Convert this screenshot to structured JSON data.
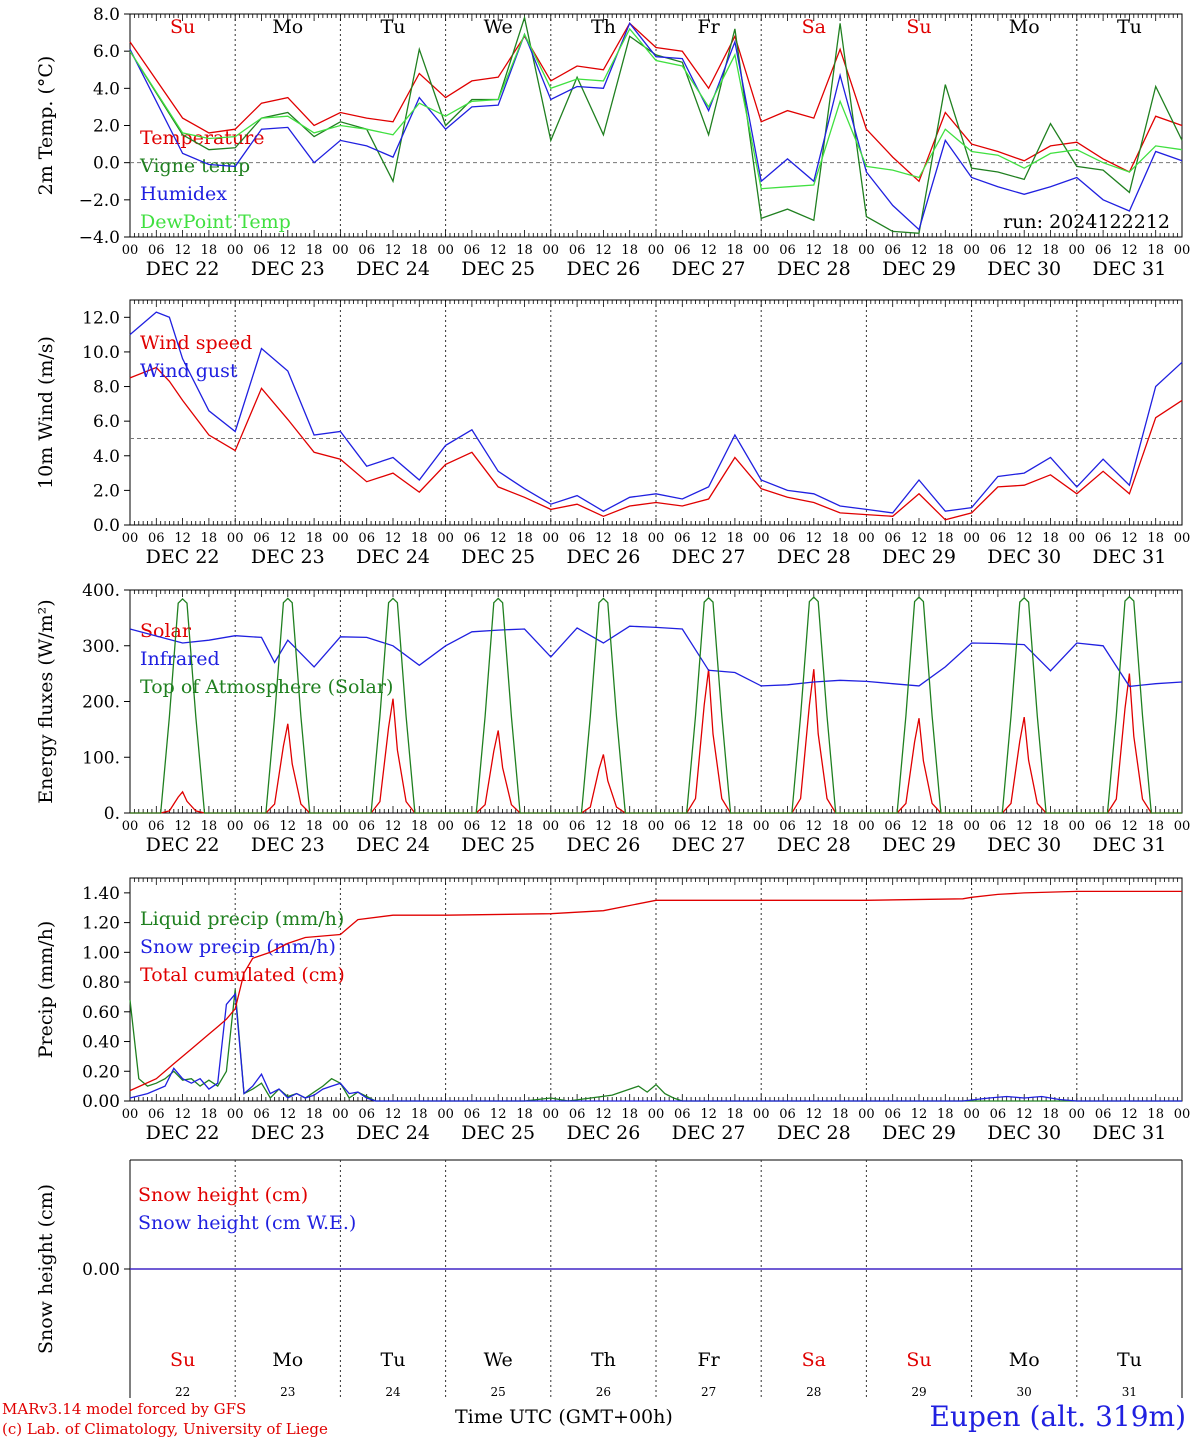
{
  "meta": {
    "run_label": "run: 2024122212",
    "station": "Eupen (alt. 319m)",
    "credit_line1": "MARv3.14 model forced by GFS",
    "credit_line2": "(c) Lab. of Climatology, University of Liege",
    "x_title": "Time UTC (GMT+00h)"
  },
  "days": {
    "weekdays": [
      "Su",
      "Mo",
      "Tu",
      "We",
      "Th",
      "Fr",
      "Sa",
      "Su",
      "Mo",
      "Tu"
    ],
    "weekend_flags": [
      true,
      false,
      false,
      false,
      false,
      false,
      true,
      true,
      false,
      false
    ],
    "date_labels": [
      "DEC 22",
      "DEC 23",
      "DEC 24",
      "DEC 25",
      "DEC 26",
      "DEC 27",
      "DEC 28",
      "DEC 29",
      "DEC 30",
      "DEC 31"
    ],
    "day_numbers": [
      "22",
      "23",
      "24",
      "25",
      "26",
      "27",
      "28",
      "29",
      "30",
      "31"
    ],
    "hour_ticks": [
      "00",
      "06",
      "12",
      "18"
    ],
    "end_tick": "00",
    "weekend_color": "#e00000"
  },
  "chart_data": [
    {
      "type": "line",
      "ylabel": "2m Temp. (°C)",
      "ylim": [
        -4,
        8
      ],
      "yticks": [
        "8.0",
        "6.0",
        "4.0",
        "2.0",
        "0.0",
        "−2.0",
        "−4.0"
      ],
      "ref_line": 0,
      "x_unit": "hours since Dec 22 00 UTC",
      "series": [
        {
          "name": "Temperature",
          "color": "#e00000",
          "x": [
            0,
            12,
            18,
            24,
            30,
            36,
            42,
            48,
            54,
            60,
            66,
            72,
            78,
            84,
            90,
            96,
            102,
            108,
            114,
            120,
            126,
            132,
            138,
            144,
            150,
            156,
            162,
            168,
            174,
            180,
            186,
            192,
            198,
            204,
            210,
            216,
            222,
            228,
            234,
            240
          ],
          "values": [
            6.5,
            2.4,
            1.6,
            1.8,
            3.2,
            3.5,
            2.0,
            2.7,
            2.4,
            2.2,
            4.8,
            3.5,
            4.4,
            4.6,
            6.8,
            4.4,
            5.2,
            5.0,
            7.5,
            6.2,
            6.0,
            4.0,
            6.8,
            2.2,
            2.8,
            2.4,
            6.1,
            1.8,
            0.3,
            -1.0,
            2.7,
            1.0,
            0.6,
            0.1,
            0.9,
            1.1,
            0.2,
            -0.5,
            2.5,
            2.0
          ]
        },
        {
          "name": "Vigne temp",
          "color": "#208020",
          "x": [
            0,
            12,
            18,
            24,
            30,
            36,
            42,
            48,
            54,
            60,
            66,
            72,
            78,
            84,
            90,
            96,
            102,
            108,
            114,
            120,
            126,
            132,
            138,
            144,
            150,
            156,
            162,
            168,
            174,
            180,
            186,
            192,
            198,
            204,
            210,
            216,
            222,
            228,
            234,
            240
          ],
          "values": [
            6.0,
            1.5,
            0.7,
            0.8,
            2.4,
            2.7,
            1.4,
            2.2,
            1.8,
            -1.0,
            6.1,
            2.0,
            3.4,
            3.4,
            7.8,
            1.2,
            4.6,
            1.5,
            6.8,
            5.8,
            5.4,
            1.5,
            7.2,
            -3.0,
            -2.5,
            -3.1,
            7.5,
            -2.9,
            -3.7,
            -3.8,
            4.2,
            -0.3,
            -0.5,
            -0.9,
            2.1,
            -0.2,
            -0.4,
            -1.6,
            4.1,
            1.2
          ]
        },
        {
          "name": "Humidex",
          "color": "#2020e0",
          "x": [
            0,
            12,
            18,
            24,
            30,
            36,
            42,
            48,
            54,
            60,
            66,
            72,
            78,
            84,
            90,
            96,
            102,
            108,
            114,
            120,
            126,
            132,
            138,
            144,
            150,
            156,
            162,
            168,
            174,
            180,
            186,
            192,
            198,
            204,
            210,
            216,
            222,
            228,
            234,
            240
          ],
          "values": [
            6.1,
            0.5,
            -0.1,
            -0.2,
            1.8,
            1.9,
            0.0,
            1.2,
            0.9,
            0.3,
            3.5,
            1.8,
            3.0,
            3.1,
            6.9,
            3.4,
            4.1,
            4.0,
            7.5,
            5.7,
            5.6,
            2.8,
            6.5,
            -1.0,
            0.2,
            -1.0,
            4.7,
            -0.5,
            -2.3,
            -3.6,
            1.2,
            -0.8,
            -1.3,
            -1.7,
            -1.3,
            -0.8,
            -2.0,
            -2.6,
            0.6,
            0.1
          ]
        },
        {
          "name": "DewPoint Temp",
          "color": "#40e040",
          "x": [
            0,
            12,
            18,
            24,
            30,
            36,
            42,
            48,
            54,
            60,
            66,
            72,
            78,
            84,
            90,
            96,
            102,
            108,
            114,
            120,
            126,
            132,
            138,
            144,
            150,
            156,
            162,
            168,
            174,
            180,
            186,
            192,
            198,
            204,
            210,
            216,
            222,
            228,
            234,
            240
          ],
          "values": [
            6.0,
            1.6,
            1.3,
            1.4,
            2.4,
            2.5,
            1.6,
            2.0,
            1.8,
            1.5,
            3.2,
            2.5,
            3.3,
            3.4,
            6.9,
            4.0,
            4.5,
            4.4,
            7.2,
            5.5,
            5.2,
            3.0,
            5.8,
            -1.4,
            -1.3,
            -1.2,
            3.3,
            -0.2,
            -0.4,
            -0.8,
            1.8,
            0.6,
            0.4,
            -0.3,
            0.5,
            0.7,
            0.0,
            -0.5,
            0.9,
            0.7
          ]
        }
      ]
    },
    {
      "type": "line",
      "ylabel": "10m Wind (m/s)",
      "ylim": [
        0,
        13
      ],
      "yticks": [
        "12.0",
        "10.0",
        "8.0",
        "6.0",
        "4.0",
        "2.0",
        "0.0"
      ],
      "ref_line": 5,
      "x_unit": "hours since Dec 22 00 UTC",
      "series": [
        {
          "name": "Wind speed",
          "color": "#e00000",
          "x": [
            0,
            6,
            9,
            12,
            18,
            24,
            30,
            36,
            42,
            48,
            54,
            60,
            66,
            72,
            78,
            84,
            90,
            96,
            102,
            108,
            114,
            120,
            126,
            132,
            138,
            144,
            150,
            156,
            162,
            168,
            174,
            180,
            186,
            192,
            198,
            204,
            210,
            216,
            222,
            228,
            234,
            240
          ],
          "values": [
            8.5,
            9.1,
            8.3,
            7.2,
            5.2,
            4.3,
            7.9,
            6.1,
            4.2,
            3.8,
            2.5,
            3.0,
            1.9,
            3.5,
            4.2,
            2.2,
            1.6,
            0.9,
            1.2,
            0.5,
            1.1,
            1.3,
            1.1,
            1.5,
            3.9,
            2.1,
            1.6,
            1.3,
            0.7,
            0.6,
            0.5,
            1.8,
            0.3,
            0.7,
            2.2,
            2.3,
            2.9,
            1.8,
            3.1,
            1.8,
            6.2,
            7.2
          ]
        },
        {
          "name": "Wind gust",
          "color": "#2020e0",
          "x": [
            0,
            6,
            9,
            12,
            18,
            24,
            30,
            36,
            42,
            48,
            54,
            60,
            66,
            72,
            78,
            84,
            90,
            96,
            102,
            108,
            114,
            120,
            126,
            132,
            138,
            144,
            150,
            156,
            162,
            168,
            174,
            180,
            186,
            192,
            198,
            204,
            210,
            216,
            222,
            228,
            234,
            240
          ],
          "values": [
            11.0,
            12.3,
            12.0,
            9.6,
            6.6,
            5.4,
            10.2,
            8.9,
            5.2,
            5.4,
            3.4,
            3.9,
            2.6,
            4.6,
            5.5,
            3.1,
            2.1,
            1.2,
            1.7,
            0.8,
            1.6,
            1.8,
            1.5,
            2.2,
            5.2,
            2.6,
            2.0,
            1.8,
            1.1,
            0.9,
            0.7,
            2.6,
            0.8,
            1.0,
            2.8,
            3.0,
            3.9,
            2.2,
            3.8,
            2.3,
            8.0,
            9.4
          ]
        }
      ]
    },
    {
      "type": "line",
      "ylabel": "Energy fluxes (W/m²)",
      "ylim": [
        0,
        400
      ],
      "yticks": [
        "400.",
        "300.",
        "200.",
        "100.",
        "0."
      ],
      "x_unit": "hours since Dec 22 00 UTC",
      "series": [
        {
          "name": "Solar",
          "color": "#e00000",
          "peaks": [
            38,
            160,
            205,
            148,
            105,
            258,
            258,
            170,
            172,
            250
          ]
        },
        {
          "name": "Infrared",
          "color": "#2020e0",
          "x": [
            0,
            12,
            18,
            24,
            30,
            33,
            36,
            42,
            48,
            54,
            60,
            66,
            72,
            78,
            84,
            90,
            96,
            102,
            108,
            114,
            120,
            126,
            132,
            138,
            144,
            150,
            156,
            162,
            168,
            174,
            180,
            186,
            192,
            198,
            204,
            210,
            216,
            222,
            228,
            234,
            240
          ],
          "values": [
            330,
            305,
            310,
            318,
            315,
            270,
            310,
            262,
            316,
            315,
            300,
            265,
            300,
            325,
            328,
            330,
            280,
            332,
            305,
            335,
            333,
            330,
            256,
            252,
            228,
            230,
            235,
            238,
            236,
            232,
            228,
            262,
            305,
            304,
            302,
            255,
            305,
            300,
            227,
            232,
            235
          ]
        },
        {
          "name": "Top of Atmosphere (Solar)",
          "color": "#208020",
          "peaks": [
            384,
            385,
            385,
            385,
            385,
            386,
            387,
            387,
            386,
            388
          ]
        }
      ],
      "solar_window_hours": [
        8,
        16
      ]
    },
    {
      "type": "line",
      "ylabel": "Precip (mm/h)",
      "ylim": [
        0,
        1.5
      ],
      "yticks": [
        "1.40",
        "1.20",
        "1.00",
        "0.80",
        "0.60",
        "0.40",
        "0.20",
        "0.00"
      ],
      "x_unit": "hours since Dec 22 00 UTC",
      "series": [
        {
          "name": "Liquid precip (mm/h)",
          "color": "#208020",
          "x": [
            0,
            2,
            4,
            6,
            8,
            10,
            12,
            14,
            16,
            18,
            20,
            22,
            24,
            26,
            28,
            30,
            32,
            34,
            36,
            38,
            40,
            42,
            44,
            46,
            48,
            50,
            52,
            54,
            56,
            60,
            90,
            96,
            100,
            110,
            112,
            114,
            116,
            118,
            120,
            122,
            124,
            126,
            140,
            180,
            240
          ],
          "values": [
            0.68,
            0.15,
            0.1,
            0.12,
            0.15,
            0.2,
            0.14,
            0.15,
            0.1,
            0.14,
            0.1,
            0.2,
            0.75,
            0.05,
            0.08,
            0.12,
            0.02,
            0.08,
            0.03,
            0.05,
            0.02,
            0.06,
            0.1,
            0.15,
            0.12,
            0.02,
            0.06,
            0.03,
            0.0,
            0.0,
            0.0,
            0.02,
            0.0,
            0.04,
            0.06,
            0.08,
            0.1,
            0.06,
            0.11,
            0.05,
            0.02,
            0.0,
            0.0,
            0.0,
            0.0
          ]
        },
        {
          "name": "Snow precip (mm/h)",
          "color": "#2020e0",
          "x": [
            0,
            4,
            8,
            10,
            12,
            14,
            16,
            18,
            20,
            22,
            24,
            26,
            28,
            30,
            32,
            34,
            36,
            38,
            40,
            42,
            44,
            46,
            48,
            50,
            52,
            54,
            56,
            60,
            190,
            196,
            200,
            204,
            208,
            212,
            216,
            240
          ],
          "values": [
            0.02,
            0.05,
            0.1,
            0.22,
            0.15,
            0.12,
            0.15,
            0.08,
            0.12,
            0.65,
            0.72,
            0.05,
            0.1,
            0.18,
            0.05,
            0.08,
            0.02,
            0.05,
            0.02,
            0.04,
            0.08,
            0.1,
            0.12,
            0.05,
            0.06,
            0.02,
            0.0,
            0.0,
            0.0,
            0.02,
            0.03,
            0.02,
            0.03,
            0.01,
            0.0,
            0.0
          ]
        },
        {
          "name": "Total cumulated (cm)",
          "color": "#e00000",
          "x": [
            0,
            6,
            10,
            14,
            18,
            20,
            22,
            24,
            26,
            28,
            32,
            36,
            40,
            44,
            48,
            52,
            60,
            72,
            96,
            108,
            120,
            132,
            144,
            168,
            190,
            192,
            198,
            204,
            216,
            240
          ],
          "values": [
            0.07,
            0.15,
            0.25,
            0.35,
            0.45,
            0.5,
            0.55,
            0.62,
            0.86,
            0.96,
            1.0,
            1.06,
            1.1,
            1.11,
            1.12,
            1.22,
            1.25,
            1.25,
            1.26,
            1.28,
            1.35,
            1.35,
            1.35,
            1.35,
            1.36,
            1.37,
            1.39,
            1.4,
            1.41,
            1.41
          ]
        }
      ]
    },
    {
      "type": "line",
      "ylabel": "Snow height (cm)",
      "ylim": [
        -1,
        1
      ],
      "yticks": [
        "0.00"
      ],
      "series": [
        {
          "name": "Snow height (cm)",
          "color": "#e00000",
          "x": [
            0,
            240
          ],
          "values": [
            0,
            0
          ]
        },
        {
          "name": "Snow height (cm W.E.)",
          "color": "#2020e0",
          "x": [
            0,
            240
          ],
          "values": [
            0,
            0
          ]
        }
      ]
    }
  ]
}
